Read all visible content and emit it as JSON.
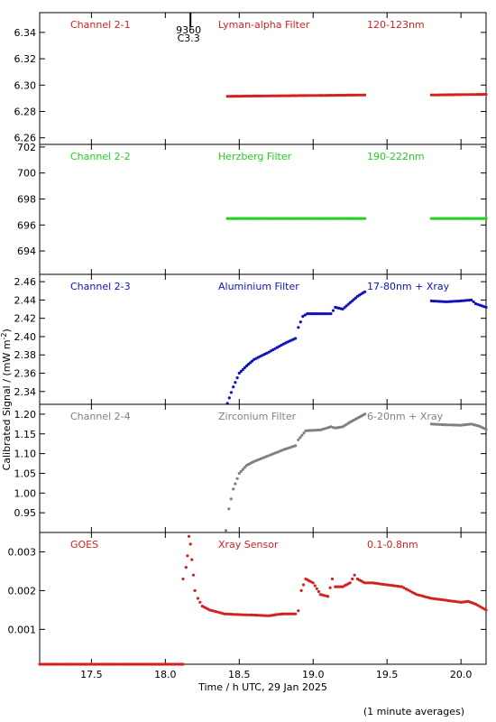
{
  "chart_data": {
    "type": "scatter",
    "xlabel": "Time / h UTC, 29 Jan 2025",
    "ylabel_main": "Calibrated Signal / (mW m",
    "ylabel_sup": "-2",
    "ylabel_end": ")",
    "footnote": "(1 minute averages)",
    "xlim": [
      17.15,
      20.17
    ],
    "xticks": [
      17.5,
      18.0,
      18.5,
      19.0,
      19.5,
      20.0
    ],
    "xtick_labels": [
      "17.5",
      "18.0",
      "18.5",
      "19.0",
      "19.5",
      "20.0"
    ],
    "annotation": {
      "label_1": "9360",
      "label_2": "C3.3",
      "x": 18.17
    },
    "panels": [
      {
        "channel": "Channel 2-1",
        "filter": "Lyman-alpha Filter",
        "band": "120-123nm",
        "color": "#d42020",
        "ylim": [
          6.255,
          6.355
        ],
        "yticks": [
          6.26,
          6.28,
          6.3,
          6.32,
          6.34
        ],
        "ytick_labels": [
          "6.26",
          "6.28",
          "6.30",
          "6.32",
          "6.34"
        ],
        "series": [
          {
            "x": [
              18.42,
              19.35
            ],
            "y": [
              6.2915,
              6.2925
            ]
          },
          {
            "x": [
              19.8,
              20.17
            ],
            "y": [
              6.2925,
              6.293
            ]
          }
        ]
      },
      {
        "channel": "Channel 2-2",
        "filter": "Herzberg Filter",
        "band": "190-222nm",
        "color": "#20d020",
        "ylim": [
          692.2,
          702.2
        ],
        "yticks": [
          694,
          696,
          698,
          700,
          702
        ],
        "ytick_labels": [
          "694",
          "696",
          "698",
          "700",
          "702"
        ],
        "series": [
          {
            "x": [
              18.42,
              19.35
            ],
            "y": [
              696.5,
              696.5
            ]
          },
          {
            "x": [
              19.8,
              20.17
            ],
            "y": [
              696.5,
              696.5
            ]
          }
        ]
      },
      {
        "channel": "Channel 2-3",
        "filter": "Aluminium Filter",
        "band": "17-80nm + Xray",
        "color": "#1010c0",
        "ylim": [
          2.326,
          2.468
        ],
        "yticks": [
          2.34,
          2.36,
          2.38,
          2.4,
          2.42,
          2.44,
          2.46
        ],
        "ytick_labels": [
          "2.34",
          "2.36",
          "2.38",
          "2.40",
          "2.42",
          "2.44",
          "2.46"
        ],
        "series": [
          {
            "x": [
              18.42,
              18.46,
              18.5,
              18.55,
              18.6,
              18.7,
              18.8,
              18.88,
              18.9,
              18.93,
              18.96,
              19.05,
              19.12,
              19.15,
              19.2,
              19.25,
              19.3,
              19.35
            ],
            "y": [
              2.327,
              2.345,
              2.36,
              2.368,
              2.375,
              2.383,
              2.392,
              2.398,
              2.41,
              2.422,
              2.425,
              2.425,
              2.425,
              2.432,
              2.43,
              2.437,
              2.444,
              2.449
            ]
          },
          {
            "x": [
              19.8,
              19.9,
              20.0,
              20.07,
              20.1,
              20.17
            ],
            "y": [
              2.439,
              2.438,
              2.439,
              2.44,
              2.436,
              2.432
            ]
          }
        ]
      },
      {
        "channel": "Channel 2-4",
        "filter": "Zirconium Filter",
        "band": "6-20nm + Xray",
        "color": "#808080",
        "ylim": [
          0.9,
          1.225
        ],
        "yticks": [
          0.95,
          1.0,
          1.05,
          1.1,
          1.15,
          1.2
        ],
        "ytick_labels": [
          "0.95",
          "1.00",
          "1.05",
          "1.10",
          "1.15",
          "1.20"
        ],
        "series": [
          {
            "x": [
              18.41,
              18.43,
              18.46,
              18.5,
              18.55,
              18.6,
              18.7,
              18.8,
              18.88,
              18.9,
              18.95,
              19.05,
              19.12,
              19.15,
              19.2,
              19.25,
              19.3,
              19.35
            ],
            "y": [
              0.905,
              0.96,
              1.01,
              1.05,
              1.07,
              1.08,
              1.095,
              1.11,
              1.12,
              1.135,
              1.158,
              1.16,
              1.168,
              1.165,
              1.168,
              1.18,
              1.19,
              1.2
            ]
          },
          {
            "x": [
              19.8,
              19.9,
              20.0,
              20.07,
              20.12,
              20.17
            ],
            "y": [
              1.175,
              1.173,
              1.172,
              1.175,
              1.17,
              1.162
            ]
          }
        ]
      },
      {
        "channel": "GOES",
        "filter": "Xray Sensor",
        "band": "0.1-0.8nm",
        "color": "#d42020",
        "ylim": [
          0.0001,
          0.0035
        ],
        "yticks": [
          0.001,
          0.002,
          0.003
        ],
        "ytick_labels": [
          "0.001",
          "0.002",
          "0.003"
        ],
        "series": [
          {
            "x": [
              17.15,
              18.12
            ],
            "y": [
              0.0001,
              0.0001
            ]
          },
          {
            "x": [
              18.12,
              18.14,
              18.15,
              18.16,
              18.17,
              18.18,
              18.19,
              18.2,
              18.22,
              18.25,
              18.3,
              18.4,
              18.5,
              18.6,
              18.7,
              18.75,
              18.8,
              18.88,
              18.9,
              18.92,
              18.95,
              19.0,
              19.05,
              19.1,
              19.13,
              19.15,
              19.2,
              19.25,
              19.28,
              19.3,
              19.35,
              19.4,
              19.5,
              19.6,
              19.7,
              19.8,
              19.9,
              20.0,
              20.05,
              20.1,
              20.17
            ],
            "y": [
              0.0023,
              0.0026,
              0.0029,
              0.0034,
              0.0032,
              0.0028,
              0.0024,
              0.002,
              0.0018,
              0.0016,
              0.0015,
              0.0014,
              0.00138,
              0.00137,
              0.00135,
              0.00138,
              0.0014,
              0.0014,
              0.00148,
              0.002,
              0.0023,
              0.0022,
              0.0019,
              0.00185,
              0.0023,
              0.0021,
              0.0021,
              0.0022,
              0.0024,
              0.0023,
              0.0022,
              0.0022,
              0.00215,
              0.0021,
              0.0019,
              0.0018,
              0.00175,
              0.0017,
              0.00172,
              0.00165,
              0.0015
            ]
          }
        ]
      }
    ]
  }
}
